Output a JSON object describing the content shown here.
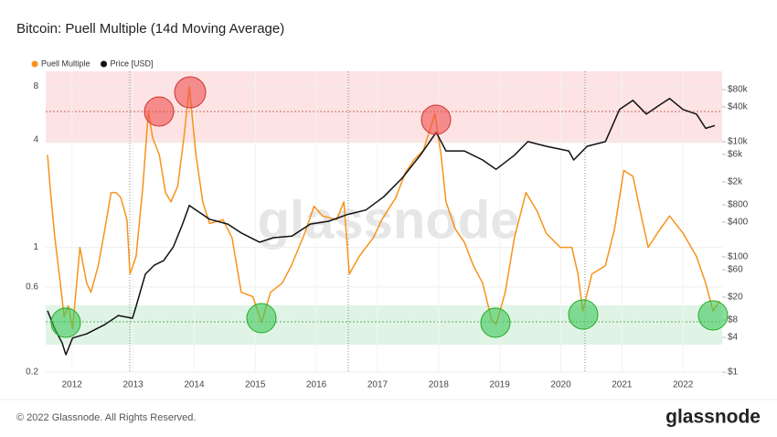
{
  "chart_data": {
    "type": "line",
    "title": "Bitcoin: Puell Multiple (14d Moving Average)",
    "watermark": "glassnode",
    "footer": "© 2022 Glassnode. All Rights Reserved.",
    "logo": "glassnode",
    "xlim": [
      2011.57,
      2022.64
    ],
    "xticks": [
      2012,
      2013,
      2014,
      2015,
      2016,
      2017,
      2018,
      2019,
      2020,
      2021,
      2022
    ],
    "ylim": [
      0.2,
      9.7
    ],
    "ylog": true,
    "yticks": [
      0.2,
      0.6,
      1,
      4,
      8
    ],
    "y2lim": [
      1,
      166000
    ],
    "y2log": true,
    "y2ticks": [
      {
        "value": 1,
        "label": "$1"
      },
      {
        "value": 4,
        "label": "$4"
      },
      {
        "value": 8,
        "label": "$8"
      },
      {
        "value": 20,
        "label": "$20"
      },
      {
        "value": 60,
        "label": "$60"
      },
      {
        "value": 100,
        "label": "$100"
      },
      {
        "value": 400,
        "label": "$400"
      },
      {
        "value": 800,
        "label": "$800"
      },
      {
        "value": 2000,
        "label": "$2k"
      },
      {
        "value": 6000,
        "label": "$6k"
      },
      {
        "value": 10000,
        "label": "$10k"
      },
      {
        "value": 40000,
        "label": "$40k"
      },
      {
        "value": 80000,
        "label": "$80k"
      }
    ],
    "grid": true,
    "legend": "top-left",
    "series": [
      {
        "name": "Puell Multiple",
        "color": "#f7931a",
        "x": [
          2011.6,
          2011.65,
          2011.72,
          2011.81,
          2011.87,
          2011.94,
          2012.01,
          2012.13,
          2012.24,
          2012.31,
          2012.43,
          2012.54,
          2012.64,
          2012.72,
          2012.8,
          2012.9,
          2012.95,
          2013.05,
          2013.16,
          2013.25,
          2013.32,
          2013.43,
          2013.53,
          2013.62,
          2013.73,
          2013.83,
          2013.92,
          2014.03,
          2014.14,
          2014.25,
          2014.47,
          2014.62,
          2014.77,
          2014.96,
          2015.1,
          2015.25,
          2015.44,
          2015.59,
          2015.81,
          2015.96,
          2016.1,
          2016.33,
          2016.45,
          2016.54,
          2016.7,
          2016.93,
          2017.07,
          2017.3,
          2017.45,
          2017.6,
          2017.75,
          2017.94,
          2018.04,
          2018.12,
          2018.27,
          2018.42,
          2018.57,
          2018.72,
          2018.87,
          2018.94,
          2019.09,
          2019.24,
          2019.43,
          2019.61,
          2019.76,
          2019.99,
          2020.18,
          2020.28,
          2020.36,
          2020.51,
          2020.73,
          2020.88,
          2021.03,
          2021.18,
          2021.33,
          2021.43,
          2021.58,
          2021.78,
          2022.0,
          2022.22,
          2022.37,
          2022.49,
          2022.6
        ],
        "values": [
          3.3,
          2.03,
          1.13,
          0.63,
          0.41,
          0.47,
          0.35,
          1.0,
          0.63,
          0.56,
          0.79,
          1.27,
          2.03,
          2.03,
          1.9,
          1.43,
          0.71,
          0.89,
          2.2,
          5.8,
          4.1,
          3.3,
          2.03,
          1.8,
          2.2,
          4.1,
          7.9,
          3.3,
          1.8,
          1.36,
          1.43,
          1.13,
          0.56,
          0.53,
          0.38,
          0.56,
          0.63,
          0.79,
          1.2,
          1.7,
          1.5,
          1.43,
          1.8,
          0.71,
          0.89,
          1.13,
          1.43,
          1.9,
          2.6,
          3.1,
          3.5,
          5.6,
          3.3,
          1.8,
          1.27,
          1.07,
          0.79,
          0.63,
          0.39,
          0.37,
          0.56,
          1.13,
          2.03,
          1.6,
          1.2,
          1.0,
          1.0,
          0.71,
          0.44,
          0.71,
          0.79,
          1.27,
          2.7,
          2.5,
          1.43,
          1.0,
          1.2,
          1.5,
          1.2,
          0.89,
          0.63,
          0.44,
          0.5
        ]
      },
      {
        "name": "Price [USD]",
        "color": "#111111",
        "axis": "y2",
        "x": [
          2011.6,
          2011.72,
          2011.84,
          2011.9,
          2012.01,
          2012.24,
          2012.54,
          2012.76,
          2012.99,
          2013.05,
          2013.2,
          2013.35,
          2013.5,
          2013.66,
          2013.81,
          2013.92,
          2014.03,
          2014.25,
          2014.55,
          2014.77,
          2015.07,
          2015.3,
          2015.6,
          2015.9,
          2016.2,
          2016.5,
          2016.81,
          2017.1,
          2017.4,
          2017.7,
          2017.96,
          2018.12,
          2018.42,
          2018.72,
          2018.94,
          2019.24,
          2019.46,
          2019.76,
          2020.13,
          2020.21,
          2020.43,
          2020.73,
          2020.96,
          2021.18,
          2021.4,
          2021.63,
          2021.78,
          2022.0,
          2022.22,
          2022.37,
          2022.52
        ],
        "values": [
          11.6,
          5.6,
          3.2,
          2,
          3.9,
          4.6,
          6.7,
          9.6,
          8.6,
          13.9,
          50,
          72,
          86,
          150,
          370,
          780,
          650,
          450,
          370,
          260,
          180,
          215,
          230,
          370,
          415,
          540,
          650,
          1100,
          2300,
          5800,
          14500,
          6900,
          6900,
          4800,
          3300,
          5800,
          10000,
          8300,
          6900,
          4800,
          8300,
          10000,
          36000,
          52000,
          30000,
          44000,
          56000,
          36000,
          30000,
          17000,
          19000
        ]
      }
    ]
  }
}
